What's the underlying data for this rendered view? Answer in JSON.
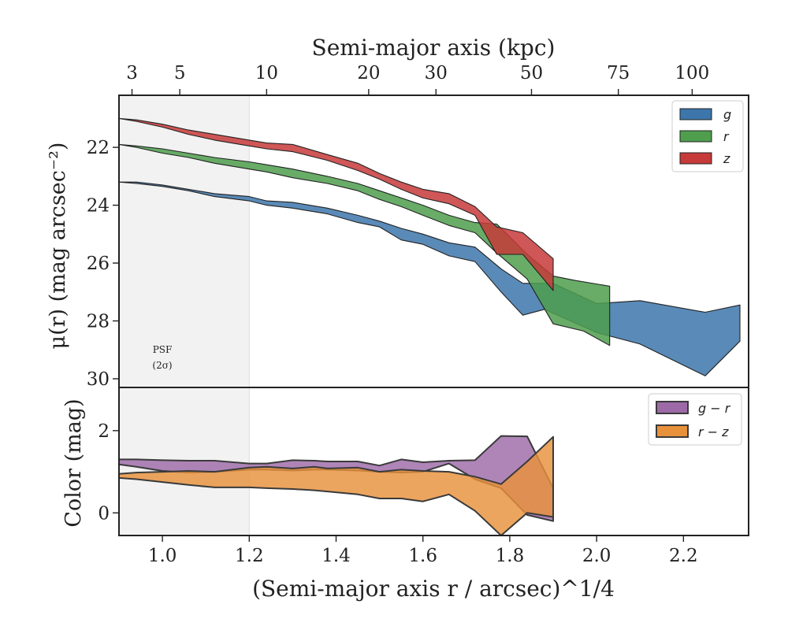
{
  "chart_data": [
    {
      "type": "area",
      "panel": "top",
      "ylabel": "μ(r) (mag arcsec⁻²)",
      "xlim": [
        0.9,
        2.35
      ],
      "ylim": [
        30.3,
        20.2
      ],
      "y_inverted": true,
      "yticks": [
        22,
        24,
        26,
        28,
        30
      ],
      "top_axis": {
        "label": "Semi-major axis (kpc)",
        "ticks": [
          {
            "label": "3",
            "x": 0.93
          },
          {
            "label": "5",
            "x": 1.04
          },
          {
            "label": "10",
            "x": 1.24
          },
          {
            "label": "20",
            "x": 1.475
          },
          {
            "label": "30",
            "x": 1.63
          },
          {
            "label": "50",
            "x": 1.85
          },
          {
            "label": "75",
            "x": 2.05
          },
          {
            "label": "100",
            "x": 2.22
          }
        ]
      },
      "psf_region": {
        "x": [
          0.9,
          1.2
        ],
        "label_line1": "PSF",
        "label_line2": "(2σ)"
      },
      "legend": {
        "position": "upper-right",
        "entries": [
          "g",
          "r",
          "z"
        ]
      },
      "series": [
        {
          "name": "g",
          "color": "#3d76aa",
          "upper": [
            [
              0.9,
              23.2
            ],
            [
              0.94,
              23.2
            ],
            [
              1.0,
              23.3
            ],
            [
              1.06,
              23.45
            ],
            [
              1.12,
              23.6
            ],
            [
              1.2,
              23.7
            ],
            [
              1.24,
              23.85
            ],
            [
              1.3,
              23.9
            ],
            [
              1.38,
              24.1
            ],
            [
              1.45,
              24.35
            ],
            [
              1.5,
              24.55
            ],
            [
              1.55,
              24.8
            ],
            [
              1.6,
              25.0
            ],
            [
              1.66,
              25.3
            ],
            [
              1.72,
              25.45
            ],
            [
              1.78,
              26.2
            ],
            [
              1.83,
              26.7
            ],
            [
              1.9,
              26.7
            ],
            [
              2.0,
              27.4
            ],
            [
              2.1,
              27.3
            ],
            [
              2.25,
              27.7
            ],
            [
              2.33,
              27.45
            ]
          ],
          "lower": [
            [
              0.9,
              23.2
            ],
            [
              0.94,
              23.25
            ],
            [
              1.0,
              23.35
            ],
            [
              1.06,
              23.5
            ],
            [
              1.12,
              23.7
            ],
            [
              1.2,
              23.85
            ],
            [
              1.24,
              24.0
            ],
            [
              1.3,
              24.1
            ],
            [
              1.38,
              24.3
            ],
            [
              1.45,
              24.6
            ],
            [
              1.5,
              24.75
            ],
            [
              1.55,
              25.2
            ],
            [
              1.6,
              25.35
            ],
            [
              1.66,
              25.75
            ],
            [
              1.72,
              25.95
            ],
            [
              1.78,
              27.0
            ],
            [
              1.83,
              27.8
            ],
            [
              1.88,
              27.6
            ],
            [
              2.0,
              28.4
            ],
            [
              2.1,
              28.8
            ],
            [
              2.25,
              29.9
            ],
            [
              2.33,
              28.7
            ]
          ]
        },
        {
          "name": "r",
          "color": "#4e9e4e",
          "upper": [
            [
              0.9,
              21.9
            ],
            [
              0.94,
              21.95
            ],
            [
              1.0,
              22.05
            ],
            [
              1.06,
              22.2
            ],
            [
              1.12,
              22.35
            ],
            [
              1.2,
              22.5
            ],
            [
              1.24,
              22.6
            ],
            [
              1.3,
              22.75
            ],
            [
              1.38,
              23.0
            ],
            [
              1.45,
              23.25
            ],
            [
              1.5,
              23.5
            ],
            [
              1.55,
              23.75
            ],
            [
              1.6,
              24.0
            ],
            [
              1.66,
              24.35
            ],
            [
              1.72,
              24.6
            ],
            [
              1.77,
              24.65
            ],
            [
              1.84,
              25.7
            ],
            [
              1.9,
              26.45
            ],
            [
              1.95,
              26.6
            ],
            [
              2.03,
              26.8
            ]
          ],
          "lower": [
            [
              0.9,
              21.9
            ],
            [
              0.94,
              22.0
            ],
            [
              1.0,
              22.2
            ],
            [
              1.06,
              22.35
            ],
            [
              1.12,
              22.55
            ],
            [
              1.2,
              22.75
            ],
            [
              1.24,
              22.85
            ],
            [
              1.3,
              23.05
            ],
            [
              1.38,
              23.25
            ],
            [
              1.45,
              23.5
            ],
            [
              1.5,
              23.8
            ],
            [
              1.55,
              24.05
            ],
            [
              1.6,
              24.35
            ],
            [
              1.66,
              24.7
            ],
            [
              1.72,
              24.95
            ],
            [
              1.77,
              25.65
            ],
            [
              1.84,
              26.55
            ],
            [
              1.9,
              28.1
            ],
            [
              1.97,
              28.35
            ],
            [
              2.03,
              28.85
            ]
          ]
        },
        {
          "name": "z",
          "color": "#c73a3a",
          "upper": [
            [
              0.9,
              21.0
            ],
            [
              0.94,
              21.05
            ],
            [
              1.0,
              21.2
            ],
            [
              1.06,
              21.4
            ],
            [
              1.12,
              21.55
            ],
            [
              1.2,
              21.75
            ],
            [
              1.24,
              21.85
            ],
            [
              1.3,
              21.9
            ],
            [
              1.38,
              22.25
            ],
            [
              1.45,
              22.55
            ],
            [
              1.5,
              22.9
            ],
            [
              1.55,
              23.2
            ],
            [
              1.6,
              23.45
            ],
            [
              1.66,
              23.6
            ],
            [
              1.72,
              24.05
            ],
            [
              1.77,
              24.75
            ],
            [
              1.83,
              24.95
            ],
            [
              1.9,
              25.85
            ]
          ],
          "lower": [
            [
              0.9,
              21.0
            ],
            [
              0.94,
              21.1
            ],
            [
              1.0,
              21.3
            ],
            [
              1.06,
              21.55
            ],
            [
              1.12,
              21.75
            ],
            [
              1.2,
              21.95
            ],
            [
              1.24,
              22.05
            ],
            [
              1.3,
              22.15
            ],
            [
              1.38,
              22.45
            ],
            [
              1.45,
              22.8
            ],
            [
              1.5,
              23.1
            ],
            [
              1.55,
              23.45
            ],
            [
              1.6,
              23.75
            ],
            [
              1.66,
              23.95
            ],
            [
              1.72,
              24.35
            ],
            [
              1.77,
              25.7
            ],
            [
              1.83,
              25.7
            ],
            [
              1.9,
              26.95
            ]
          ]
        }
      ]
    },
    {
      "type": "area",
      "panel": "bottom",
      "xlabel": "(Semi-major axis r / arcsec)^1/4",
      "ylabel": "Color (mag)",
      "xlim": [
        0.9,
        2.35
      ],
      "ylim": [
        -0.55,
        3.05
      ],
      "yticks": [
        0,
        2
      ],
      "xticks": [
        1.0,
        1.2,
        1.4,
        1.6,
        1.8,
        2.0,
        2.2
      ],
      "xtick_labels": [
        "1.0",
        "1.2",
        "1.4",
        "1.6",
        "1.8",
        "2.0",
        "2.2"
      ],
      "legend": {
        "position": "upper-right",
        "entries": [
          "g − r",
          "r − z"
        ]
      },
      "series": [
        {
          "name": "g − r",
          "color": "#9d6aa8",
          "upper": [
            [
              0.9,
              1.3
            ],
            [
              0.94,
              1.3
            ],
            [
              1.0,
              1.28
            ],
            [
              1.06,
              1.27
            ],
            [
              1.12,
              1.27
            ],
            [
              1.2,
              1.2
            ],
            [
              1.24,
              1.2
            ],
            [
              1.3,
              1.28
            ],
            [
              1.35,
              1.27
            ],
            [
              1.38,
              1.25
            ],
            [
              1.45,
              1.25
            ],
            [
              1.5,
              1.15
            ],
            [
              1.55,
              1.3
            ],
            [
              1.6,
              1.23
            ],
            [
              1.66,
              1.27
            ],
            [
              1.72,
              1.28
            ],
            [
              1.78,
              1.87
            ],
            [
              1.84,
              1.86
            ],
            [
              1.9,
              0.6
            ]
          ],
          "lower": [
            [
              0.9,
              1.18
            ],
            [
              0.94,
              1.12
            ],
            [
              1.0,
              1.02
            ],
            [
              1.06,
              0.98
            ],
            [
              1.12,
              1.0
            ],
            [
              1.2,
              1.05
            ],
            [
              1.24,
              1.05
            ],
            [
              1.3,
              1.03
            ],
            [
              1.35,
              1.05
            ],
            [
              1.38,
              1.05
            ],
            [
              1.45,
              1.03
            ],
            [
              1.5,
              1.0
            ],
            [
              1.55,
              0.98
            ],
            [
              1.6,
              1.0
            ],
            [
              1.66,
              1.2
            ],
            [
              1.72,
              0.82
            ],
            [
              1.78,
              0.6
            ],
            [
              1.84,
              -0.05
            ],
            [
              1.9,
              -0.2
            ]
          ]
        },
        {
          "name": "r − z",
          "color": "#e8913b",
          "upper": [
            [
              0.9,
              0.95
            ],
            [
              0.94,
              0.98
            ],
            [
              1.0,
              1.0
            ],
            [
              1.06,
              1.02
            ],
            [
              1.12,
              1.0
            ],
            [
              1.2,
              1.1
            ],
            [
              1.24,
              1.12
            ],
            [
              1.3,
              1.08
            ],
            [
              1.35,
              1.12
            ],
            [
              1.38,
              1.08
            ],
            [
              1.45,
              1.1
            ],
            [
              1.5,
              1.0
            ],
            [
              1.55,
              1.05
            ],
            [
              1.6,
              1.02
            ],
            [
              1.66,
              1.0
            ],
            [
              1.72,
              0.88
            ],
            [
              1.78,
              0.7
            ],
            [
              1.84,
              1.25
            ],
            [
              1.9,
              1.85
            ]
          ],
          "lower": [
            [
              0.9,
              0.85
            ],
            [
              0.94,
              0.82
            ],
            [
              1.0,
              0.75
            ],
            [
              1.06,
              0.68
            ],
            [
              1.12,
              0.62
            ],
            [
              1.2,
              0.62
            ],
            [
              1.24,
              0.6
            ],
            [
              1.3,
              0.58
            ],
            [
              1.35,
              0.55
            ],
            [
              1.38,
              0.52
            ],
            [
              1.45,
              0.45
            ],
            [
              1.5,
              0.35
            ],
            [
              1.55,
              0.35
            ],
            [
              1.6,
              0.28
            ],
            [
              1.66,
              0.45
            ],
            [
              1.72,
              0.05
            ],
            [
              1.78,
              -0.55
            ],
            [
              1.84,
              0.0
            ],
            [
              1.9,
              -0.1
            ]
          ]
        }
      ]
    }
  ]
}
